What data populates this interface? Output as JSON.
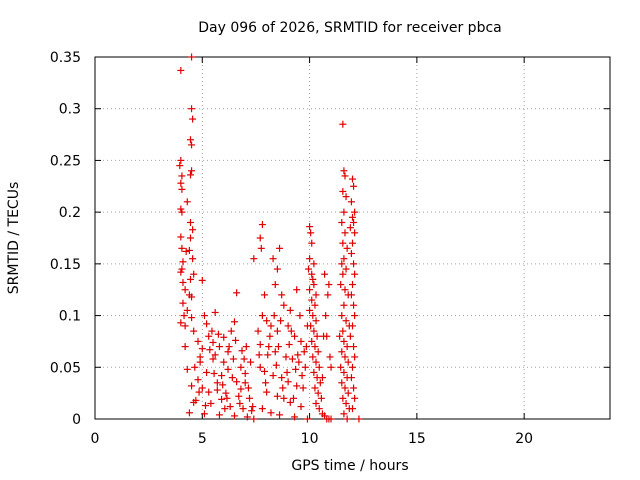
{
  "chart_data": {
    "type": "scatter",
    "title": "Day 096 of 2026, SRMTID for receiver pbca",
    "xlabel": "GPS time / hours",
    "ylabel": "SRMTID / TECUs",
    "xlim": [
      0,
      24
    ],
    "ylim": [
      0,
      0.35
    ],
    "xticks": [
      0,
      5,
      10,
      15,
      20
    ],
    "xtick_labels": [
      "0",
      "5",
      "10",
      "15",
      "20"
    ],
    "yticks": [
      0,
      0.05,
      0.1,
      0.15,
      0.2,
      0.25,
      0.3,
      0.35
    ],
    "ytick_labels": [
      "0",
      "0.05",
      "0.1",
      "0.15",
      "0.2",
      "0.25",
      "0.3",
      "0.35"
    ],
    "grid": true,
    "marker": "+",
    "color": "#e00000",
    "series": [
      {
        "name": "SRMTID",
        "points": [
          [
            4.0,
            0.337
          ],
          [
            4.5,
            0.35
          ],
          [
            4.5,
            0.3
          ],
          [
            4.55,
            0.29
          ],
          [
            4.45,
            0.27
          ],
          [
            4.5,
            0.265
          ],
          [
            4.0,
            0.25
          ],
          [
            3.95,
            0.245
          ],
          [
            4.05,
            0.235
          ],
          [
            4.0,
            0.228
          ],
          [
            4.5,
            0.24
          ],
          [
            4.45,
            0.236
          ],
          [
            4.05,
            0.222
          ],
          [
            4.3,
            0.21
          ],
          [
            4.0,
            0.203
          ],
          [
            4.05,
            0.2
          ],
          [
            4.45,
            0.19
          ],
          [
            4.55,
            0.183
          ],
          [
            4.0,
            0.176
          ],
          [
            4.45,
            0.175
          ],
          [
            4.05,
            0.165
          ],
          [
            4.4,
            0.163
          ],
          [
            4.25,
            0.162
          ],
          [
            4.55,
            0.155
          ],
          [
            4.1,
            0.152
          ],
          [
            4.05,
            0.145
          ],
          [
            4.0,
            0.142
          ],
          [
            4.6,
            0.14
          ],
          [
            4.45,
            0.135
          ],
          [
            4.1,
            0.132
          ],
          [
            4.2,
            0.125
          ],
          [
            4.4,
            0.12
          ],
          [
            4.5,
            0.118
          ],
          [
            5.0,
            0.134
          ],
          [
            4.1,
            0.112
          ],
          [
            4.3,
            0.105
          ],
          [
            4.15,
            0.1
          ],
          [
            4.5,
            0.098
          ],
          [
            4.0,
            0.093
          ],
          [
            4.2,
            0.09
          ],
          [
            5.1,
            0.1
          ],
          [
            5.6,
            0.103
          ],
          [
            6.6,
            0.122
          ],
          [
            6.5,
            0.094
          ],
          [
            7.4,
            0.155
          ],
          [
            4.6,
            0.085
          ],
          [
            5.3,
            0.08
          ],
          [
            4.8,
            0.075
          ],
          [
            4.2,
            0.07
          ],
          [
            5.8,
            0.07
          ],
          [
            6.2,
            0.065
          ],
          [
            4.9,
            0.06
          ],
          [
            5.5,
            0.058
          ],
          [
            6.0,
            0.055
          ],
          [
            6.8,
            0.05
          ],
          [
            4.3,
            0.048
          ],
          [
            5.2,
            0.045
          ],
          [
            5.9,
            0.042
          ],
          [
            6.4,
            0.04
          ],
          [
            7.0,
            0.035
          ],
          [
            4.5,
            0.032
          ],
          [
            5.0,
            0.03
          ],
          [
            5.7,
            0.028
          ],
          [
            6.1,
            0.025
          ],
          [
            6.7,
            0.022
          ],
          [
            7.2,
            0.02
          ],
          [
            4.7,
            0.018
          ],
          [
            5.4,
            0.015
          ],
          [
            6.3,
            0.012
          ],
          [
            6.9,
            0.01
          ],
          [
            7.3,
            0.008
          ],
          [
            4.4,
            0.006
          ],
          [
            5.1,
            0.005
          ],
          [
            5.8,
            0.004
          ],
          [
            6.5,
            0.003
          ],
          [
            7.1,
            0.002
          ],
          [
            7.4,
            0.0
          ],
          [
            4.9,
            0.055
          ],
          [
            5.6,
            0.062
          ],
          [
            6.2,
            0.048
          ],
          [
            6.6,
            0.036
          ],
          [
            5.3,
            0.026
          ],
          [
            4.6,
            0.016
          ],
          [
            5.9,
            0.019
          ],
          [
            6.8,
            0.029
          ],
          [
            7.0,
            0.044
          ],
          [
            5.0,
            0.068
          ],
          [
            5.5,
            0.074
          ],
          [
            6.0,
            0.079
          ],
          [
            4.8,
            0.038
          ],
          [
            7.8,
            0.188
          ],
          [
            7.7,
            0.175
          ],
          [
            7.75,
            0.165
          ],
          [
            8.6,
            0.165
          ],
          [
            8.3,
            0.155
          ],
          [
            8.5,
            0.145
          ],
          [
            8.4,
            0.13
          ],
          [
            7.9,
            0.12
          ],
          [
            8.7,
            0.12
          ],
          [
            9.4,
            0.125
          ],
          [
            9.1,
            0.105
          ],
          [
            8.8,
            0.11
          ],
          [
            7.8,
            0.1
          ],
          [
            8.0,
            0.095
          ],
          [
            8.2,
            0.09
          ],
          [
            8.5,
            0.085
          ],
          [
            9.0,
            0.09
          ],
          [
            9.3,
            0.08
          ],
          [
            9.6,
            0.075
          ],
          [
            7.7,
            0.072
          ],
          [
            8.1,
            0.07
          ],
          [
            8.4,
            0.065
          ],
          [
            8.9,
            0.06
          ],
          [
            9.2,
            0.058
          ],
          [
            9.5,
            0.055
          ],
          [
            9.8,
            0.05
          ],
          [
            7.9,
            0.046
          ],
          [
            8.3,
            0.042
          ],
          [
            8.7,
            0.04
          ],
          [
            9.0,
            0.036
          ],
          [
            9.4,
            0.032
          ],
          [
            9.7,
            0.03
          ],
          [
            8.0,
            0.026
          ],
          [
            8.5,
            0.022
          ],
          [
            8.8,
            0.02
          ],
          [
            9.1,
            0.016
          ],
          [
            9.6,
            0.012
          ],
          [
            7.8,
            0.01
          ],
          [
            8.2,
            0.006
          ],
          [
            8.6,
            0.004
          ],
          [
            9.3,
            0.002
          ],
          [
            9.9,
            0.0
          ],
          [
            7.6,
            0.085
          ],
          [
            7.65,
            0.062
          ],
          [
            7.7,
            0.05
          ],
          [
            9.9,
            0.09
          ],
          [
            9.85,
            0.07
          ],
          [
            10.0,
            0.186
          ],
          [
            10.05,
            0.18
          ],
          [
            10.1,
            0.17
          ],
          [
            10.0,
            0.155
          ],
          [
            10.2,
            0.15
          ],
          [
            9.95,
            0.145
          ],
          [
            10.1,
            0.14
          ],
          [
            10.15,
            0.135
          ],
          [
            10.2,
            0.13
          ],
          [
            10.0,
            0.125
          ],
          [
            10.3,
            0.12
          ],
          [
            10.1,
            0.115
          ],
          [
            10.25,
            0.11
          ],
          [
            10.0,
            0.105
          ],
          [
            10.15,
            0.1
          ],
          [
            10.3,
            0.095
          ],
          [
            10.05,
            0.09
          ],
          [
            10.2,
            0.085
          ],
          [
            10.35,
            0.08
          ],
          [
            10.1,
            0.075
          ],
          [
            10.25,
            0.07
          ],
          [
            10.4,
            0.065
          ],
          [
            10.15,
            0.06
          ],
          [
            10.3,
            0.055
          ],
          [
            10.45,
            0.05
          ],
          [
            10.2,
            0.045
          ],
          [
            10.35,
            0.04
          ],
          [
            10.5,
            0.035
          ],
          [
            10.25,
            0.03
          ],
          [
            10.4,
            0.025
          ],
          [
            10.55,
            0.02
          ],
          [
            10.3,
            0.015
          ],
          [
            10.45,
            0.01
          ],
          [
            10.6,
            0.005
          ],
          [
            10.7,
            0.003
          ],
          [
            10.8,
            0.0
          ],
          [
            10.9,
            0.0
          ],
          [
            11.0,
            0.0
          ],
          [
            10.65,
            0.08
          ],
          [
            10.75,
            0.1
          ],
          [
            10.85,
            0.12
          ],
          [
            10.7,
            0.14
          ],
          [
            10.9,
            0.13
          ],
          [
            10.8,
            0.08
          ],
          [
            10.95,
            0.06
          ],
          [
            11.0,
            0.05
          ],
          [
            10.6,
            0.04
          ],
          [
            11.55,
            0.285
          ],
          [
            11.6,
            0.24
          ],
          [
            11.65,
            0.235
          ],
          [
            11.55,
            0.22
          ],
          [
            11.7,
            0.215
          ],
          [
            11.6,
            0.2
          ],
          [
            11.5,
            0.19
          ],
          [
            11.65,
            0.18
          ],
          [
            11.55,
            0.17
          ],
          [
            11.75,
            0.165
          ],
          [
            11.6,
            0.155
          ],
          [
            11.5,
            0.15
          ],
          [
            11.7,
            0.145
          ],
          [
            11.55,
            0.14
          ],
          [
            11.45,
            0.13
          ],
          [
            11.65,
            0.125
          ],
          [
            11.8,
            0.12
          ],
          [
            11.6,
            0.11
          ],
          [
            11.5,
            0.1
          ],
          [
            11.7,
            0.095
          ],
          [
            11.85,
            0.09
          ],
          [
            11.55,
            0.085
          ],
          [
            11.4,
            0.08
          ],
          [
            11.6,
            0.075
          ],
          [
            11.75,
            0.07
          ],
          [
            11.5,
            0.065
          ],
          [
            11.65,
            0.06
          ],
          [
            11.8,
            0.055
          ],
          [
            11.45,
            0.05
          ],
          [
            11.6,
            0.045
          ],
          [
            11.75,
            0.04
          ],
          [
            11.5,
            0.035
          ],
          [
            11.65,
            0.03
          ],
          [
            11.8,
            0.025
          ],
          [
            11.55,
            0.02
          ],
          [
            11.7,
            0.015
          ],
          [
            11.85,
            0.01
          ],
          [
            11.6,
            0.005
          ],
          [
            11.75,
            0.0
          ],
          [
            12.0,
            0.232
          ],
          [
            12.05,
            0.225
          ],
          [
            11.95,
            0.21
          ],
          [
            12.1,
            0.2
          ],
          [
            12.0,
            0.195
          ],
          [
            12.05,
            0.19
          ],
          [
            11.9,
            0.185
          ],
          [
            12.1,
            0.18
          ],
          [
            12.0,
            0.17
          ],
          [
            11.95,
            0.16
          ],
          [
            12.05,
            0.15
          ],
          [
            12.1,
            0.14
          ],
          [
            12.0,
            0.13
          ],
          [
            11.95,
            0.12
          ],
          [
            12.05,
            0.11
          ],
          [
            12.1,
            0.1
          ],
          [
            12.0,
            0.09
          ],
          [
            11.9,
            0.08
          ],
          [
            12.05,
            0.07
          ],
          [
            12.1,
            0.06
          ],
          [
            12.0,
            0.05
          ],
          [
            11.95,
            0.04
          ],
          [
            12.05,
            0.03
          ],
          [
            12.1,
            0.02
          ],
          [
            12.0,
            0.01
          ],
          [
            12.3,
            0.0
          ],
          [
            5.2,
            0.092
          ],
          [
            5.45,
            0.085
          ],
          [
            5.7,
            0.035
          ],
          [
            6.05,
            0.01
          ],
          [
            6.25,
            0.07
          ],
          [
            6.45,
            0.058
          ],
          [
            6.75,
            0.015
          ],
          [
            6.95,
            0.058
          ],
          [
            7.15,
            0.03
          ],
          [
            7.35,
            0.012
          ],
          [
            4.65,
            0.05
          ],
          [
            4.85,
            0.026
          ],
          [
            5.15,
            0.013
          ],
          [
            5.35,
            0.067
          ],
          [
            5.55,
            0.044
          ],
          [
            5.75,
            0.082
          ],
          [
            5.95,
            0.033
          ],
          [
            6.15,
            0.02
          ],
          [
            6.35,
            0.085
          ],
          [
            6.55,
            0.076
          ],
          [
            6.85,
            0.066
          ],
          [
            7.05,
            0.07
          ],
          [
            7.25,
            0.055
          ],
          [
            8.15,
            0.08
          ],
          [
            8.45,
            0.052
          ],
          [
            8.75,
            0.03
          ],
          [
            9.05,
            0.072
          ],
          [
            9.35,
            0.048
          ],
          [
            9.55,
            0.1
          ],
          [
            9.75,
            0.065
          ],
          [
            8.05,
            0.062
          ],
          [
            8.35,
            0.1
          ],
          [
            8.65,
            0.095
          ],
          [
            8.95,
            0.045
          ],
          [
            9.25,
            0.02
          ],
          [
            9.45,
            0.062
          ],
          [
            7.95,
            0.035
          ],
          [
            8.55,
            0.07
          ],
          [
            9.15,
            0.085
          ],
          [
            9.65,
            0.042
          ]
        ]
      }
    ]
  }
}
